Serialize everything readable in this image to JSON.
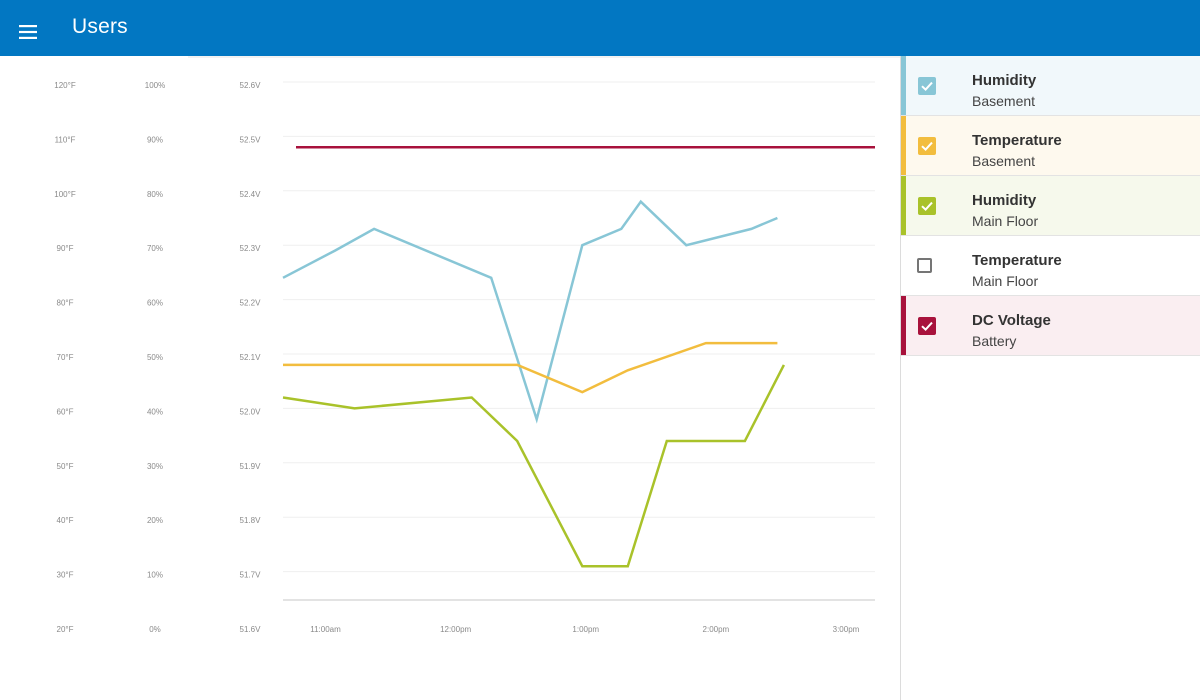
{
  "header": {
    "title": "Users",
    "menu_icon": "menu-icon"
  },
  "legend": {
    "items": [
      {
        "name": "Humidity",
        "location": "Basement",
        "checked": true,
        "color": "#88c6d6",
        "bg": "#f1f8fb"
      },
      {
        "name": "Temperature",
        "location": "Basement",
        "checked": true,
        "color": "#f2bd3e",
        "bg": "#fef9ee"
      },
      {
        "name": "Humidity",
        "location": "Main Floor",
        "checked": true,
        "color": "#a9c22a",
        "bg": "#f6f9ec"
      },
      {
        "name": "Temperature",
        "location": "Main Floor",
        "checked": false,
        "color": "#ffffff",
        "bg": "#ffffff"
      },
      {
        "name": "DC Voltage",
        "location": "Battery",
        "checked": true,
        "color": "#a8123c",
        "bg": "#faeef1"
      }
    ]
  },
  "chart_data": {
    "type": "line",
    "y_axes": [
      {
        "unit": "temperature",
        "ticks": [
          "120°F",
          "110°F",
          "100°F",
          "90°F",
          "80°F",
          "70°F",
          "60°F",
          "50°F",
          "40°F",
          "30°F",
          "20°F"
        ]
      },
      {
        "unit": "humidity",
        "ticks": [
          "100%",
          "90%",
          "80%",
          "70%",
          "60%",
          "50%",
          "40%",
          "30%",
          "20%",
          "10%",
          "0%"
        ]
      },
      {
        "unit": "voltage",
        "ticks": [
          "52.6V",
          "52.5V",
          "52.4V",
          "52.3V",
          "52.2V",
          "52.1V",
          "52.0V",
          "51.9V",
          "51.8V",
          "51.7V",
          "51.6V"
        ]
      }
    ],
    "x_ticks": [
      {
        "label": "11:00am",
        "hour": 11.0
      },
      {
        "label": "12:00pm",
        "hour": 12.0
      },
      {
        "label": "1:00pm",
        "hour": 13.0
      },
      {
        "label": "2:00pm",
        "hour": 14.0
      },
      {
        "label": "3:00pm",
        "hour": 15.0
      }
    ],
    "x_range_hours": [
      10.65,
      15.2
    ],
    "grid": true,
    "series": [
      {
        "name": "Humidity Basement",
        "color": "#88c6d6",
        "axis": "humidity",
        "points": [
          [
            10.65,
            64
          ],
          [
            11.05,
            69
          ],
          [
            11.35,
            73
          ],
          [
            12.25,
            64
          ],
          [
            12.6,
            38
          ],
          [
            12.95,
            70
          ],
          [
            13.25,
            73
          ],
          [
            13.4,
            78
          ],
          [
            13.75,
            70
          ],
          [
            14.25,
            73
          ],
          [
            14.45,
            75
          ]
        ]
      },
      {
        "name": "Temperature Basement",
        "color": "#f2bd3e",
        "axis": "temperature",
        "points": [
          [
            10.65,
            68
          ],
          [
            12.45,
            68
          ],
          [
            12.95,
            63
          ],
          [
            13.3,
            67
          ],
          [
            13.9,
            72
          ],
          [
            14.45,
            72
          ]
        ]
      },
      {
        "name": "Humidity Main Floor",
        "color": "#a9c22a",
        "axis": "humidity",
        "points": [
          [
            10.65,
            42
          ],
          [
            11.2,
            40
          ],
          [
            12.1,
            42
          ],
          [
            12.45,
            34
          ],
          [
            12.95,
            11
          ],
          [
            13.3,
            11
          ],
          [
            13.6,
            34
          ],
          [
            14.2,
            34
          ],
          [
            14.5,
            48
          ]
        ]
      },
      {
        "name": "DC Voltage Battery",
        "color": "#a8123c",
        "axis": "voltage",
        "points": [
          [
            10.75,
            52.48
          ],
          [
            15.2,
            52.48
          ]
        ]
      }
    ]
  }
}
